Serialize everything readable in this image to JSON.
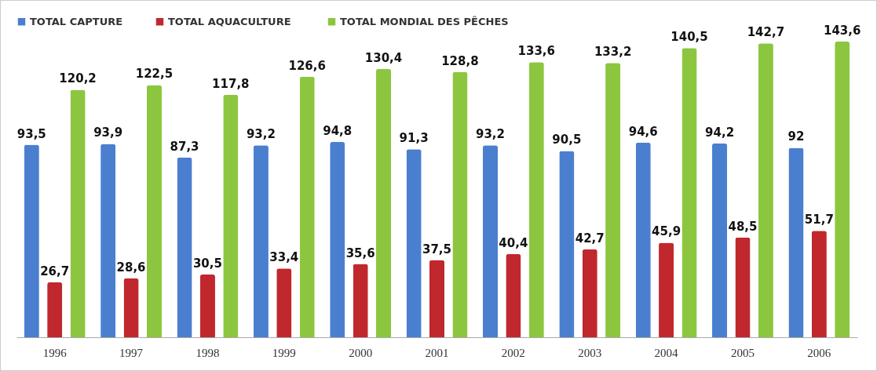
{
  "chart_data": {
    "type": "bar",
    "categories": [
      "1996",
      "1997",
      "1998",
      "1999",
      "2000",
      "2001",
      "2002",
      "2003",
      "2004",
      "2005",
      "2006"
    ],
    "series": [
      {
        "name": "TOTAL CAPTURE",
        "color": "#4a7fd0",
        "values": [
          93.5,
          93.9,
          87.3,
          93.2,
          94.8,
          91.3,
          93.2,
          90.5,
          94.6,
          94.2,
          92
        ],
        "value_labels": [
          "93,5",
          "93,9",
          "87,3",
          "93,2",
          "94,8",
          "91,3",
          "93,2",
          "90,5",
          "94,6",
          "94,2",
          "92"
        ]
      },
      {
        "name": "TOTAL  AQUACULTURE",
        "color": "#c0282d",
        "values": [
          26.7,
          28.6,
          30.5,
          33.4,
          35.6,
          37.5,
          40.4,
          42.7,
          45.9,
          48.5,
          51.7
        ],
        "value_labels": [
          "26,7",
          "28,6",
          "30,5",
          "33,4",
          "35,6",
          "37,5",
          "40,4",
          "42,7",
          "45,9",
          "48,5",
          "51,7"
        ]
      },
      {
        "name": "TOTAL MONDIAL DES PÊCHES",
        "color": "#8cc63f",
        "values": [
          120.2,
          122.5,
          117.8,
          126.6,
          130.4,
          128.8,
          133.6,
          133.2,
          140.5,
          142.7,
          143.6
        ],
        "value_labels": [
          "120,2",
          "122,5",
          "117,8",
          "126,6",
          "130,4",
          "128,8",
          "133,6",
          "133,2",
          "140,5",
          "142,7",
          "143,6"
        ]
      }
    ],
    "legend": "top",
    "grid": false
  }
}
